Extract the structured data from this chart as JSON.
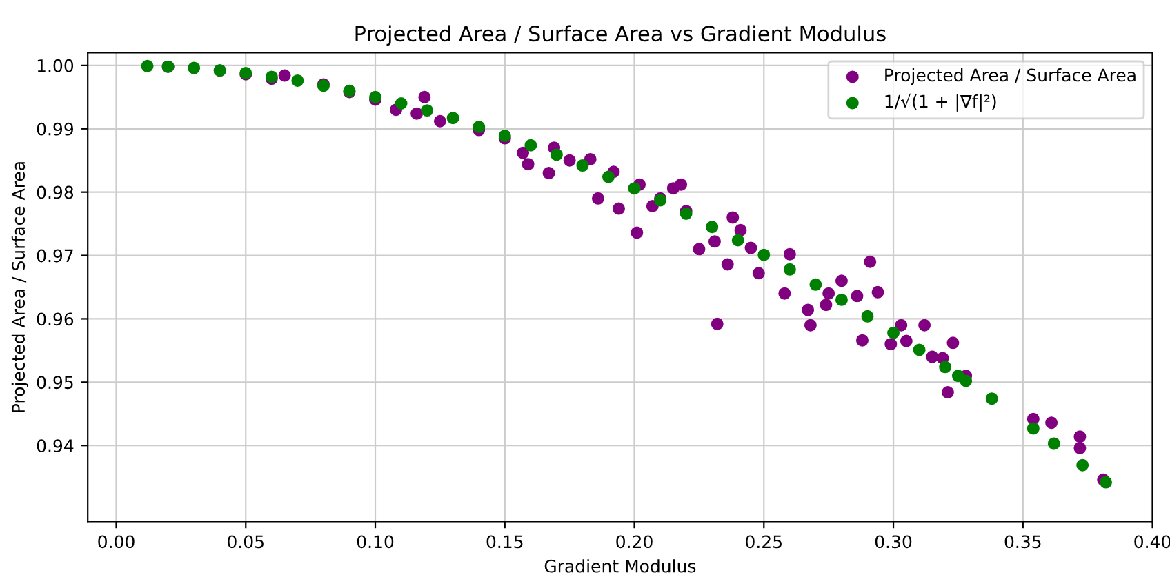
{
  "chart_data": {
    "type": "scatter",
    "title": "Projected Area / Surface Area vs Gradient Modulus",
    "xlabel": "Gradient Modulus",
    "ylabel": "Projected Area / Surface Area",
    "xlim": [
      -0.011,
      0.4
    ],
    "ylim": [
      0.928,
      1.002
    ],
    "xticks": [
      {
        "value": 0.0,
        "label": "0.00"
      },
      {
        "value": 0.05,
        "label": "0.05"
      },
      {
        "value": 0.1,
        "label": "0.10"
      },
      {
        "value": 0.15,
        "label": "0.15"
      },
      {
        "value": 0.2,
        "label": "0.20"
      },
      {
        "value": 0.25,
        "label": "0.25"
      },
      {
        "value": 0.3,
        "label": "0.30"
      },
      {
        "value": 0.35,
        "label": "0.35"
      },
      {
        "value": 0.4,
        "label": "0.40"
      }
    ],
    "yticks": [
      0.94,
      0.95,
      0.96,
      0.97,
      0.98,
      0.99,
      {
        "value": 1.0,
        "label": "1.00"
      }
    ],
    "grid": true,
    "legend": "top right",
    "marker": "circle",
    "series": [
      {
        "name": "Projected Area / Surface Area",
        "color": "#800080",
        "x": [
          0.02,
          0.04,
          0.05,
          0.06,
          0.065,
          0.08,
          0.09,
          0.1,
          0.108,
          0.116,
          0.119,
          0.125,
          0.14,
          0.15,
          0.157,
          0.159,
          0.167,
          0.169,
          0.175,
          0.183,
          0.186,
          0.192,
          0.194,
          0.201,
          0.202,
          0.207,
          0.21,
          0.215,
          0.218,
          0.22,
          0.225,
          0.231,
          0.232,
          0.236,
          0.238,
          0.241,
          0.245,
          0.248,
          0.258,
          0.26,
          0.267,
          0.268,
          0.274,
          0.275,
          0.28,
          0.286,
          0.288,
          0.291,
          0.294,
          0.299,
          0.303,
          0.305,
          0.312,
          0.315,
          0.319,
          0.321,
          0.323,
          0.328,
          0.354,
          0.361,
          0.372,
          0.372,
          0.381
        ],
        "values": [
          0.9998,
          0.9992,
          0.9986,
          0.9979,
          0.9984,
          0.997,
          0.9958,
          0.9946,
          0.993,
          0.9924,
          0.995,
          0.9912,
          0.9898,
          0.9885,
          0.9862,
          0.9844,
          0.983,
          0.987,
          0.985,
          0.9852,
          0.979,
          0.9832,
          0.9774,
          0.9736,
          0.9812,
          0.9778,
          0.979,
          0.9806,
          0.9812,
          0.977,
          0.971,
          0.9722,
          0.9592,
          0.9686,
          0.976,
          0.974,
          0.9712,
          0.9672,
          0.964,
          0.9702,
          0.9614,
          0.959,
          0.9622,
          0.964,
          0.966,
          0.9636,
          0.9566,
          0.969,
          0.9642,
          0.956,
          0.959,
          0.9565,
          0.959,
          0.954,
          0.9538,
          0.9484,
          0.9562,
          0.951,
          0.9442,
          0.9436,
          0.9414,
          0.9396,
          0.9346
        ]
      },
      {
        "name": "1/√(1 + |∇f|²)",
        "color": "#008000",
        "x": [
          0.012,
          0.02,
          0.03,
          0.04,
          0.05,
          0.06,
          0.07,
          0.08,
          0.09,
          0.1,
          0.11,
          0.12,
          0.13,
          0.14,
          0.15,
          0.16,
          0.17,
          0.18,
          0.19,
          0.2,
          0.21,
          0.22,
          0.23,
          0.24,
          0.25,
          0.26,
          0.27,
          0.28,
          0.29,
          0.3,
          0.31,
          0.32,
          0.325,
          0.328,
          0.338,
          0.354,
          0.362,
          0.373,
          0.382
        ],
        "values": [
          0.9999,
          0.9998,
          0.9996,
          0.9992,
          0.9988,
          0.9982,
          0.9976,
          0.9968,
          0.996,
          0.995,
          0.994,
          0.9929,
          0.9917,
          0.9903,
          0.9889,
          0.9874,
          0.9859,
          0.9842,
          0.9824,
          0.9806,
          0.9787,
          0.9766,
          0.9745,
          0.9724,
          0.9701,
          0.9678,
          0.9654,
          0.963,
          0.9604,
          0.9578,
          0.9551,
          0.9524,
          0.951,
          0.9502,
          0.9474,
          0.9427,
          0.9403,
          0.9369,
          0.9342
        ]
      }
    ]
  }
}
